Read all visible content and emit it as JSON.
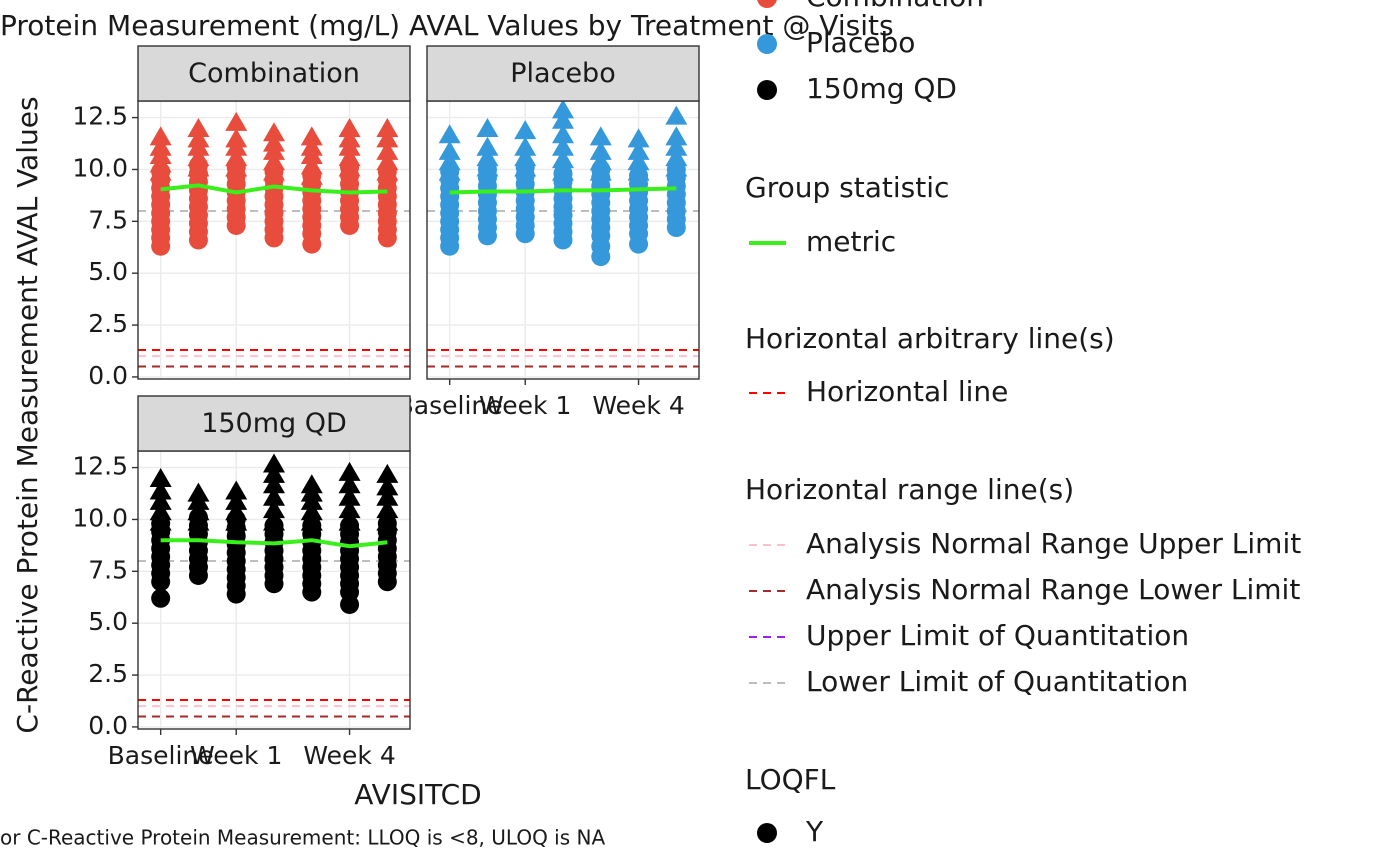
{
  "chart_data": {
    "type": "scatter",
    "title": "Protein Measurement (mg/L) AVAL Values by Treatment @ Visits",
    "x_label": "AVISITCD",
    "y_label": "C-Reactive Protein Measurement AVAL Values",
    "footnote": "or C-Reactive Protein Measurement: LLOQ is <8, ULOQ is NA",
    "categories": [
      "Baseline",
      null,
      "Week 1",
      null,
      null,
      "Week 4",
      null
    ],
    "ylim": [
      -0.1,
      13.3
    ],
    "yticks": [
      {
        "value": 0,
        "label": "0.0"
      },
      2.5,
      {
        "value": 5,
        "label": "5.0"
      },
      7.5,
      {
        "value": 10,
        "label": "10.0"
      },
      12.5
    ],
    "grid": true,
    "metric_name": "metric",
    "metric_color": "#39f01b",
    "legend_titles": [
      "Group statistic",
      "Horizontal arbitrary line(s)",
      "Horizontal range line(s)",
      "LOQFL"
    ],
    "loqfl_levels": [
      "Y"
    ],
    "hlines": [
      {
        "name": "Horizontal line",
        "value": 1.3,
        "color": "#ff0000"
      },
      {
        "name": "Analysis Normal Range Upper Limit",
        "value": 1.0,
        "color": "#ffc0cb"
      },
      {
        "name": "Analysis Normal Range Lower Limit",
        "value": 0.5,
        "color": "#a52a2a"
      },
      {
        "name": "Upper Limit of Quantitation",
        "value": null,
        "color": "#a020f0"
      },
      {
        "name": "Lower Limit of Quantitation",
        "value": 8,
        "color": "#bebebe"
      }
    ],
    "panels": [
      {
        "name": "Combination",
        "color": "#e74c3c",
        "metric": [
          9.04,
          9.23,
          8.89,
          9.18,
          8.99,
          8.89,
          8.94
        ],
        "circles": [
          [
            6.3,
            6.7,
            7.1,
            7.5,
            7.9,
            8.3,
            8.7,
            9.1,
            9.5,
            9.9
          ],
          [
            6.6,
            7.0,
            7.4,
            7.8,
            8.2,
            8.6,
            9.0,
            9.4,
            9.8,
            10.2
          ],
          [
            7.3,
            7.7,
            8.1,
            8.5,
            8.9,
            9.3,
            9.7,
            10.1
          ],
          [
            6.7,
            7.1,
            7.5,
            7.9,
            8.3,
            8.7,
            9.1,
            9.5,
            9.9
          ],
          [
            6.4,
            6.9,
            7.3,
            7.7,
            8.1,
            8.5,
            8.9,
            9.3,
            9.7
          ],
          [
            7.3,
            7.7,
            8.1,
            8.5,
            8.9,
            9.3,
            9.7,
            10.1
          ],
          [
            6.7,
            7.1,
            7.5,
            7.9,
            8.3,
            8.7,
            9.1,
            9.5,
            9.9
          ]
        ],
        "triangles": [
          [
            9.8,
            10.2,
            10.6,
            11.0,
            11.5
          ],
          [
            10.0,
            10.5,
            11.0,
            11.4,
            11.9
          ],
          [
            10.0,
            10.5,
            11.0,
            11.4,
            12.2
          ],
          [
            9.8,
            10.3,
            10.8,
            11.2,
            11.7
          ],
          [
            9.6,
            10.1,
            10.6,
            11.0,
            11.5
          ],
          [
            10.0,
            10.5,
            11.0,
            11.4,
            11.9
          ],
          [
            9.8,
            10.3,
            10.8,
            11.4,
            11.9
          ]
        ]
      },
      {
        "name": "Placebo",
        "color": "#3498db",
        "metric": [
          8.89,
          8.94,
          8.94,
          8.99,
          8.99,
          9.04,
          9.09
        ],
        "circles": [
          [
            6.3,
            6.7,
            7.1,
            7.5,
            7.9,
            8.3,
            8.7,
            9.1,
            9.5,
            9.9
          ],
          [
            6.8,
            7.2,
            7.6,
            8.0,
            8.4,
            8.8,
            9.2,
            9.6,
            10.0
          ],
          [
            6.9,
            7.3,
            7.7,
            8.1,
            8.5,
            8.9,
            9.3,
            9.7,
            10.1
          ],
          [
            6.6,
            7.0,
            7.4,
            7.8,
            8.2,
            8.6,
            9.0,
            9.4,
            9.8
          ],
          [
            5.8,
            6.3,
            6.8,
            7.2,
            7.6,
            8.0,
            8.4,
            8.8,
            9.2,
            9.6,
            10.0
          ],
          [
            6.4,
            6.9,
            7.3,
            7.7,
            8.1,
            8.5,
            8.9,
            9.3,
            9.7
          ],
          [
            7.2,
            7.6,
            8.0,
            8.4,
            8.8,
            9.2,
            9.6,
            10.0
          ]
        ],
        "triangles": [
          [
            9.8,
            10.3,
            10.8,
            11.6
          ],
          [
            10.0,
            10.5,
            11.0,
            11.9
          ],
          [
            10.0,
            10.5,
            11.0,
            11.8
          ],
          [
            9.8,
            10.4,
            11.0,
            11.6,
            12.3,
            12.8
          ],
          [
            9.8,
            10.3,
            10.8,
            11.5
          ],
          [
            9.8,
            10.3,
            10.8,
            11.4
          ],
          [
            10.0,
            10.5,
            11.0,
            11.5,
            12.5
          ]
        ]
      },
      {
        "name": "150mg QD",
        "color": "#000000",
        "metric": [
          9.0,
          9.0,
          8.9,
          8.85,
          9.0,
          8.71,
          8.9
        ],
        "circles": [
          [
            6.2,
            7.0,
            7.4,
            7.8,
            8.2,
            8.6,
            9.0,
            9.4,
            9.8
          ],
          [
            7.3,
            7.7,
            8.1,
            8.5,
            8.9,
            9.3,
            9.7,
            10.1
          ],
          [
            6.4,
            6.8,
            7.2,
            7.6,
            8.0,
            8.4,
            8.8,
            9.2,
            9.6,
            10.0
          ],
          [
            6.9,
            7.3,
            7.7,
            8.1,
            8.5,
            8.9,
            9.3,
            9.7
          ],
          [
            6.5,
            6.9,
            7.3,
            7.7,
            8.1,
            8.5,
            8.9,
            9.3,
            9.7
          ],
          [
            5.9,
            6.5,
            6.9,
            7.3,
            7.7,
            8.1,
            8.5,
            8.9,
            9.3,
            9.7
          ],
          [
            7.0,
            7.4,
            7.8,
            8.2,
            8.6,
            9.0,
            9.4,
            9.8
          ]
        ],
        "triangles": [
          [
            9.8,
            10.3,
            10.8,
            11.3,
            11.9
          ],
          [
            9.8,
            10.3,
            10.8,
            11.2
          ],
          [
            9.8,
            10.3,
            10.8,
            11.3
          ],
          [
            9.8,
            10.4,
            11.0,
            11.6,
            12.1,
            12.6
          ],
          [
            9.8,
            10.3,
            10.8,
            11.2,
            11.6
          ],
          [
            9.8,
            10.4,
            11.0,
            11.6,
            12.2
          ],
          [
            9.8,
            10.4,
            11.0,
            11.5,
            12.1
          ]
        ]
      }
    ]
  }
}
